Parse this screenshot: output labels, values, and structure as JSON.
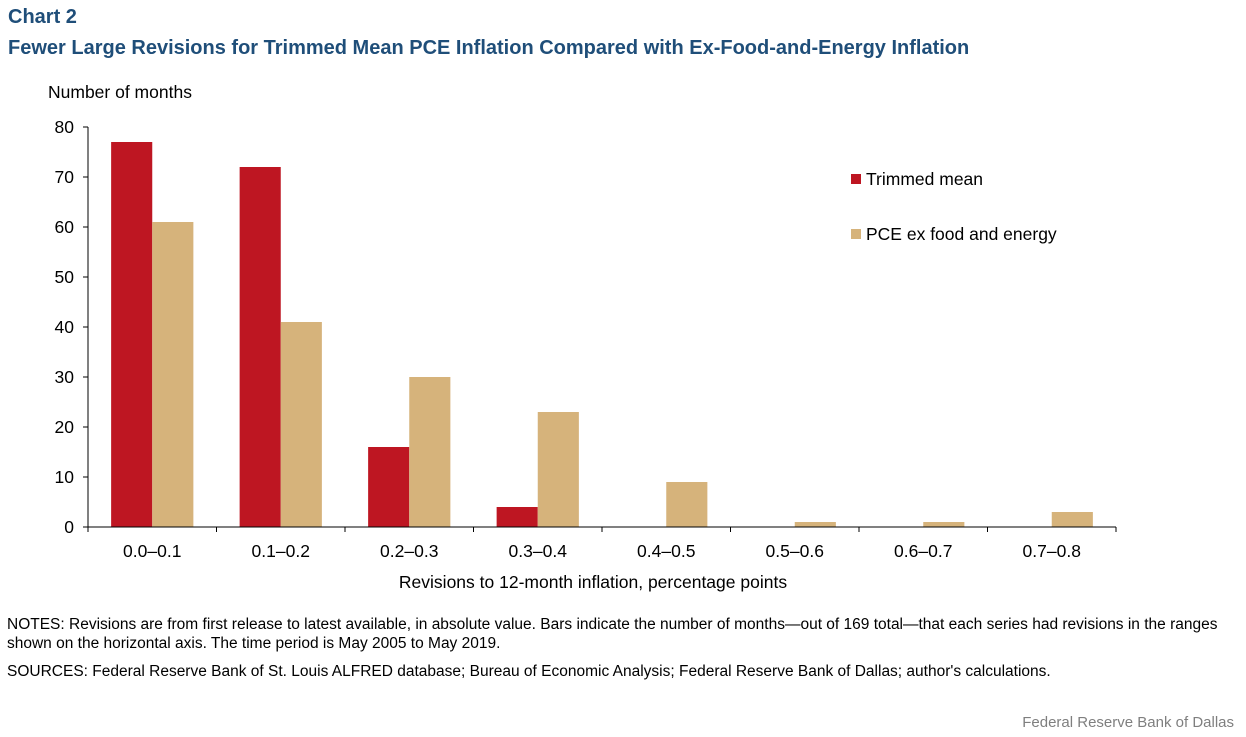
{
  "header": {
    "chart_label": "Chart 2",
    "title": "Fewer Large Revisions for Trimmed Mean PCE Inflation Compared with Ex-Food-and-Energy Inflation"
  },
  "chart_data": {
    "type": "bar",
    "categories": [
      "0.0–0.1",
      "0.1–0.2",
      "0.2–0.3",
      "0.3–0.4",
      "0.4–0.5",
      "0.5–0.6",
      "0.6–0.7",
      "0.7–0.8"
    ],
    "series": [
      {
        "name": "Trimmed mean",
        "color": "#be1622",
        "values": [
          77,
          72,
          16,
          4,
          0,
          0,
          0,
          0
        ]
      },
      {
        "name": "PCE ex food and energy",
        "color": "#d6b37b",
        "values": [
          61,
          41,
          30,
          23,
          9,
          1,
          1,
          3
        ]
      }
    ],
    "ylabel": "Number  of months",
    "xlabel": "Revisions  to 12-month  inflation,  percentage points",
    "ylim": [
      0,
      80
    ],
    "yticks": [
      0,
      10,
      20,
      30,
      40,
      50,
      60,
      70,
      80
    ],
    "legend_position": "top-right",
    "grid": false
  },
  "footer": {
    "notes": "NOTES: Revisions are from first release to latest available, in absolute value. Bars indicate the number of months—out of 169 total—that each series had revisions in the ranges shown on the horizontal axis. The time period is May 2005 to May 2019.",
    "sources": "SOURCES: Federal Reserve Bank of St. Louis ALFRED database; Bureau of Economic Analysis; Federal Reserve Bank of Dallas; author's calculations.",
    "credit": "Federal Reserve  Bank of Dallas"
  }
}
